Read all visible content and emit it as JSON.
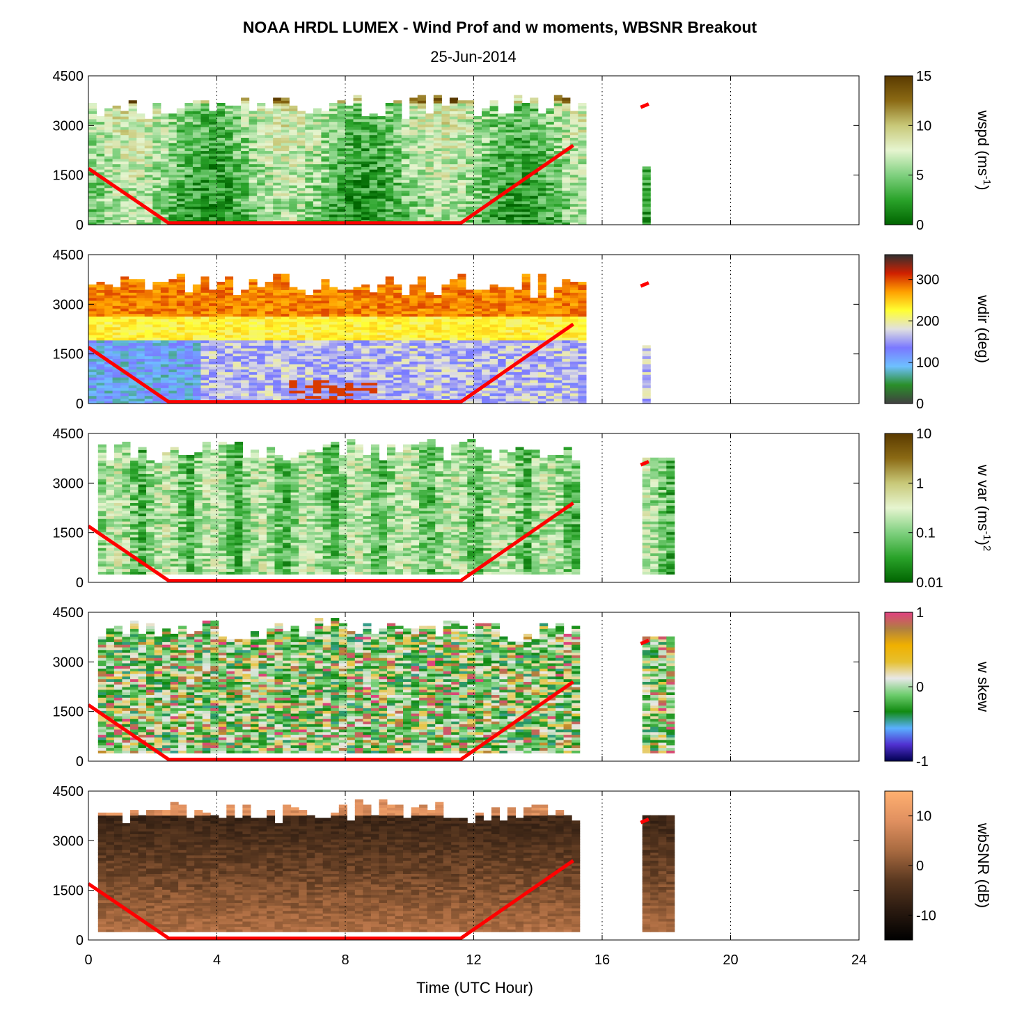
{
  "title": "NOAA HRDL LUMEX - Wind Prof and w moments, WBSNR Breakout",
  "subtitle": "25-Jun-2014",
  "colors": {
    "boundary_line": "#ff0000",
    "axes": "#000000",
    "grid": "#000000"
  },
  "chart_data": {
    "type": "heatmap",
    "xlabel": "Time (UTC Hour)",
    "xlim": [
      0,
      24
    ],
    "xticks": [
      "0",
      "4",
      "8",
      "12",
      "16",
      "20",
      "24"
    ],
    "ylim": [
      0,
      4500
    ],
    "yticks": [
      "0",
      "1500",
      "3000",
      "4500"
    ],
    "grid": "vertical dotted lines at 4, 8, 12, 16, 20, 24",
    "boundary_layer_line": {
      "color": "#ff0000",
      "x": [
        0,
        2.5,
        11.6,
        15.1
      ],
      "y": [
        1700,
        50,
        50,
        2400
      ]
    },
    "panels": [
      {
        "name": "wspd",
        "colorbar_label": "wspd (ms-1)",
        "colorbar_label_base": "wspd (ms",
        "colorbar_label_exp": "-1",
        "colorbar_label_end": ")",
        "colorbar_ticks": [
          "15",
          "10",
          "5",
          "0"
        ],
        "clim": [
          0,
          15
        ],
        "colormap": [
          "#006400",
          "#2aa32a",
          "#7fd07f",
          "#e6f5d0",
          "#c8c878",
          "#8b6a14",
          "#5a3a00"
        ],
        "coverage_x": [
          0,
          15.5
        ],
        "data_top": 3400,
        "data_bottom": 0
      },
      {
        "name": "wdir",
        "colorbar_label": "wdir (deg)",
        "colorbar_ticks": [
          "300",
          "200",
          "100",
          "0"
        ],
        "clim": [
          0,
          360
        ],
        "colormap": [
          "#404040",
          "#2a8f2a",
          "#6ec0ff",
          "#7a78ff",
          "#e0e0e0",
          "#ffff33",
          "#ffa000",
          "#d02000",
          "#303030"
        ],
        "coverage_x": [
          0,
          15.5
        ],
        "data_top": 3400,
        "data_bottom": 0
      },
      {
        "name": "w_var",
        "colorbar_label": "w var (ms-1)2",
        "colorbar_label_base": "w var (ms",
        "colorbar_label_exp": "-1",
        "colorbar_label_end": ")",
        "colorbar_label_exp2": "2",
        "colorbar_ticks": [
          "10",
          "1",
          "0.1",
          "0.01"
        ],
        "clim": [
          0.01,
          10
        ],
        "log_scale": true,
        "colormap": [
          "#006400",
          "#2aa32a",
          "#7fd07f",
          "#e6f5d0",
          "#c8c878",
          "#8b6a14",
          "#5a3a00"
        ],
        "coverage_x": [
          0.3,
          15.3
        ],
        "data_top": 3800,
        "data_bottom": 250
      },
      {
        "name": "w_skew",
        "colorbar_label": "w skew",
        "colorbar_ticks": [
          "1",
          "0",
          "-1"
        ],
        "clim": [
          -1,
          1
        ],
        "colormap": [
          "#000050",
          "#5030d0",
          "#5ab0ff",
          "#118a11",
          "#6ccc6c",
          "#e8e8e8",
          "#e6c030",
          "#f0b000",
          "#b08040",
          "#e04080"
        ],
        "coverage_x": [
          0.3,
          15.3
        ],
        "data_top": 3800,
        "data_bottom": 250
      },
      {
        "name": "wbSNR",
        "colorbar_label": "wbSNR (dB)",
        "colorbar_ticks": [
          "10",
          "0",
          "-10"
        ],
        "clim": [
          -15,
          15
        ],
        "colormap": [
          "#000000",
          "#2a1a10",
          "#5a3820",
          "#a86a40",
          "#e09060",
          "#ffb070"
        ],
        "coverage_x": [
          0.3,
          15.3
        ],
        "data_top": 3700,
        "data_bottom": 250
      }
    ]
  }
}
